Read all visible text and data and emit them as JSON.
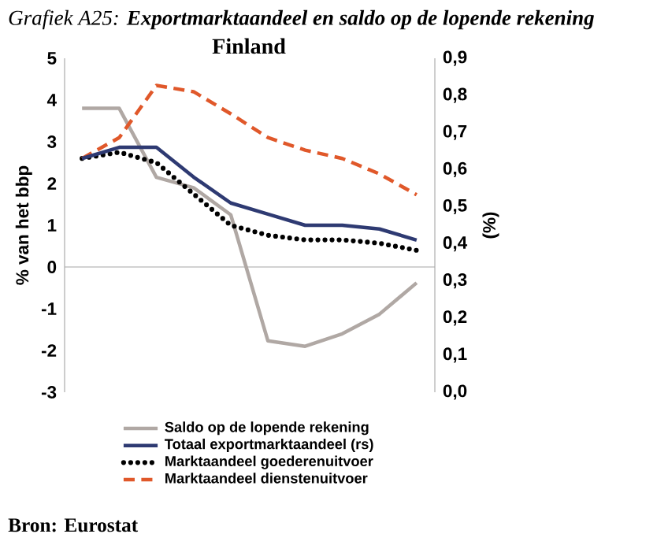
{
  "chart_data": {
    "type": "line",
    "title": "Grafiek A25: **Exportmarktaandeel en saldo op de lopende rekening**",
    "subtitle": "Finland",
    "ylabel": "% van het bbp",
    "y2label": "(%)",
    "annotations": [
      "Bron: Eurostat"
    ],
    "categories": [
      null,
      null,
      null,
      null,
      null,
      null,
      null,
      null,
      null,
      null
    ],
    "ylim": [
      -3,
      5
    ],
    "yticks": [
      -3,
      -2,
      -1,
      0,
      1,
      2,
      3,
      4,
      5
    ],
    "y2lim": [
      0,
      0.9
    ],
    "y2ticks": [
      {
        "value": 0,
        "label": "0,0"
      },
      {
        "value": 0.1,
        "label": "0,1"
      },
      {
        "value": 0.2,
        "label": "0,2"
      },
      {
        "value": 0.3,
        "label": "0,3"
      },
      {
        "value": 0.4,
        "label": "0,4"
      },
      {
        "value": 0.5,
        "label": "0,5"
      },
      {
        "value": 0.6,
        "label": "0,6"
      },
      {
        "value": 0.7,
        "label": "0,7"
      },
      {
        "value": 0.8,
        "label": "0,8"
      },
      {
        "value": 0.9,
        "label": "0,9"
      }
    ],
    "legend": "bottom",
    "series": [
      {
        "name": "Saldo op de lopende rekening",
        "color": "#b0a8a4",
        "line_style": "solid",
        "values": [
          3.8,
          3.8,
          2.15,
          1.9,
          1.25,
          -1.77,
          -1.9,
          -1.6,
          -1.13,
          -0.38
        ]
      },
      {
        "name": "Totaal exportmarktaandeel (rs)",
        "color": "#2e3a72",
        "line_style": "solid",
        "axis": "y2",
        "values": [
          0.63,
          0.66,
          0.66,
          0.58,
          0.51,
          0.48,
          0.45,
          0.45,
          0.44,
          0.41
        ]
      },
      {
        "name": "Marktaandeel goederenuitvoer",
        "color": "#000000",
        "line_style": "dotted",
        "values": [
          2.6,
          2.75,
          2.5,
          1.75,
          1.0,
          0.76,
          0.65,
          0.65,
          0.57,
          0.4
        ]
      },
      {
        "name": "Marktaandeel dienstenuitvoer",
        "color": "#e0582a",
        "line_style": "dashed",
        "values": [
          2.6,
          3.1,
          4.35,
          4.2,
          3.67,
          3.1,
          2.8,
          2.6,
          2.23,
          1.73
        ]
      }
    ]
  }
}
